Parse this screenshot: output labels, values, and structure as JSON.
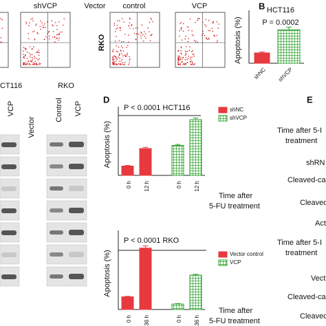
{
  "panels": {
    "b": "B",
    "d": "D",
    "e": "E"
  },
  "flow": {
    "labels": [
      "shVCP",
      "Vector",
      "control",
      "VCP"
    ],
    "cell_line": "RKO"
  },
  "blot": {
    "labels": [
      "CT116",
      "VCP",
      "Vector",
      "RKO",
      "Control",
      "VCP"
    ]
  },
  "panel_e": {
    "labels": [
      "Time after 5-I",
      "treatment",
      "shRN",
      "Cleaved-caspase",
      "Cleaved-PAR",
      "Acti",
      "Time after 5-I",
      "treatment",
      "Vect",
      "Cleaved-caspase",
      "Cleaved-PAR",
      "Acti"
    ]
  },
  "chart_data": [
    {
      "type": "bar",
      "title": "HCT116",
      "annotation": "P = 0.0002",
      "y_label": "Apoptosis (%)",
      "categories": [
        "shNC",
        "shVCP"
      ],
      "values": [
        4.5,
        14.5
      ],
      "errors": [
        0.4,
        1.2
      ],
      "colors": [
        "#e8393e",
        "#2ca02c"
      ],
      "fill_styles": [
        "solid",
        "checker"
      ],
      "ylim": [
        0,
        20
      ]
    },
    {
      "type": "grouped_bar",
      "annotation": "P < 0.0001  HCT116",
      "y_label": "Apoptosis (%)",
      "x_note": [
        "Time after",
        "5-FU treatment"
      ],
      "categories": [
        "0 h",
        "12 h"
      ],
      "series": [
        {
          "name": "shNC",
          "color": "#e8393e",
          "fill_style": "solid",
          "values": [
            4.5,
            13
          ],
          "errors": [
            0.3,
            0.6
          ]
        },
        {
          "name": "shVCP",
          "color": "#2ca02c",
          "fill_style": "checker",
          "values": [
            14.5,
            27
          ],
          "errors": [
            0.5,
            0.8
          ]
        }
      ],
      "ylim": [
        0,
        30
      ]
    },
    {
      "type": "grouped_bar",
      "annotation": "P < 0.0001  RKO",
      "y_label": "Apoptosis (%)",
      "x_note": [
        "Time after",
        "5-FU treatment"
      ],
      "categories": [
        "0 h",
        "36 h"
      ],
      "series": [
        {
          "name": "Vector control",
          "color": "#e8393e",
          "fill_style": "solid",
          "values": [
            7,
            34
          ],
          "errors": [
            0.3,
            1.2
          ]
        },
        {
          "name": "VCP",
          "color": "#2ca02c",
          "fill_style": "checker",
          "values": [
            3,
            19
          ],
          "errors": [
            0.3,
            0.5
          ]
        }
      ],
      "ylim": [
        0,
        40
      ]
    }
  ]
}
